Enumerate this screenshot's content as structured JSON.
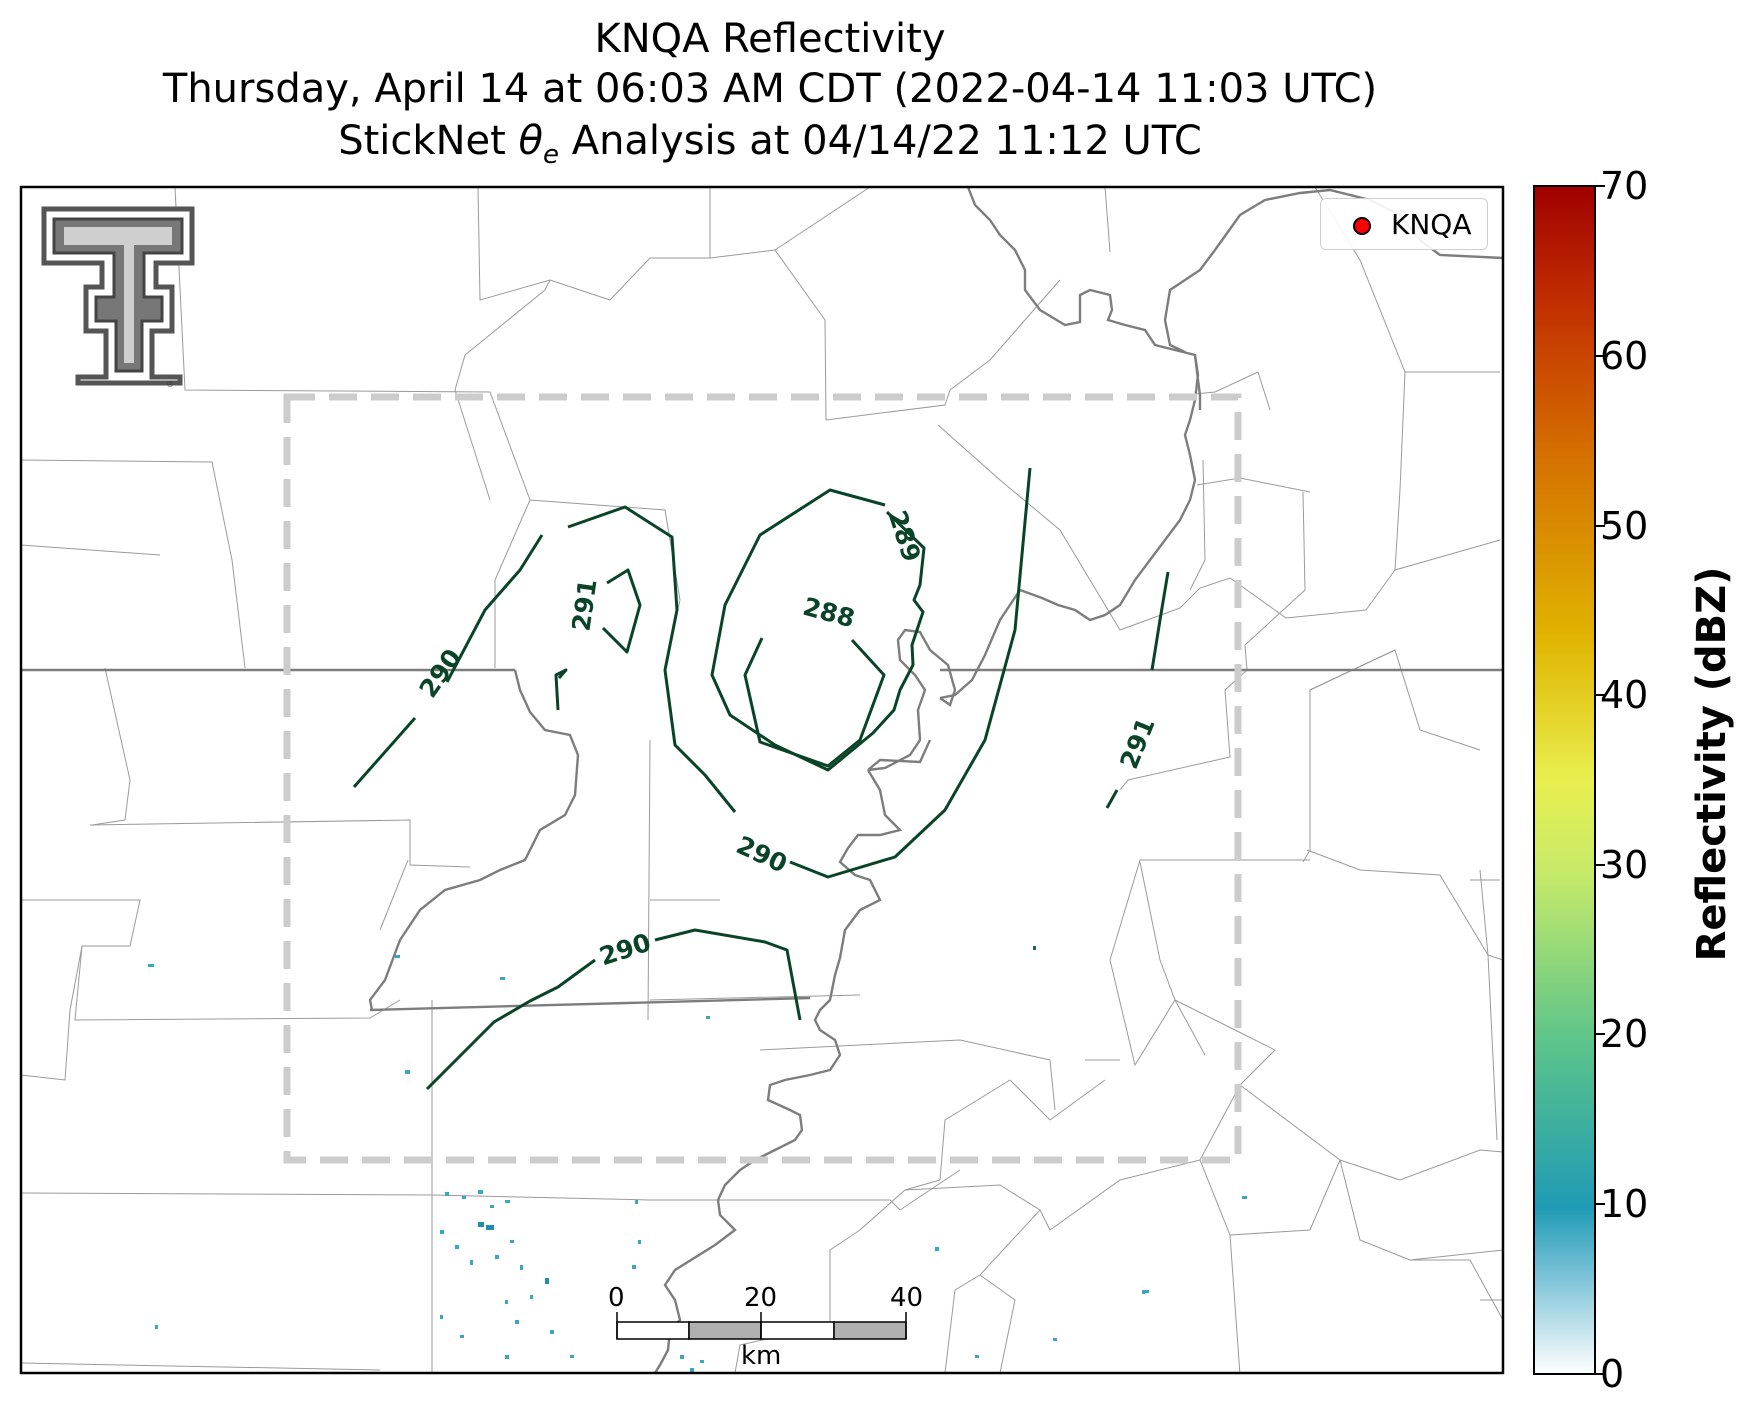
{
  "title": {
    "line1": "KNQA Reflectivity",
    "line2": "Thursday, April 14 at 06:03 AM CDT (2022-04-14 11:03 UTC)",
    "line3_pre": "StickNet ",
    "line3_theta": "θ",
    "line3_sub": "e",
    "line3_post": " Analysis at 04/14/22 11:12 UTC"
  },
  "legend": {
    "label": "KNQA",
    "marker_color": "#ff0000"
  },
  "colorbar": {
    "label": "Reflectivity (dBZ)",
    "ticks": [
      "0",
      "10",
      "20",
      "30",
      "40",
      "50",
      "60",
      "70"
    ],
    "range": [
      0,
      70
    ],
    "colors": [
      "#ffffff",
      "#1f9bb5",
      "#5cc48a",
      "#c5ea6a",
      "#e9ef4f",
      "#e0b400",
      "#d46d00",
      "#c23000",
      "#a00000"
    ]
  },
  "scale_bar": {
    "unit": "km",
    "ticks": [
      "0",
      "20",
      "40"
    ]
  },
  "contours": {
    "color": "#0a4428",
    "labels": [
      "288",
      "289",
      "290",
      "290",
      "290",
      "291",
      "291"
    ]
  },
  "logo": {
    "name": "texas-tech-double-t"
  }
}
